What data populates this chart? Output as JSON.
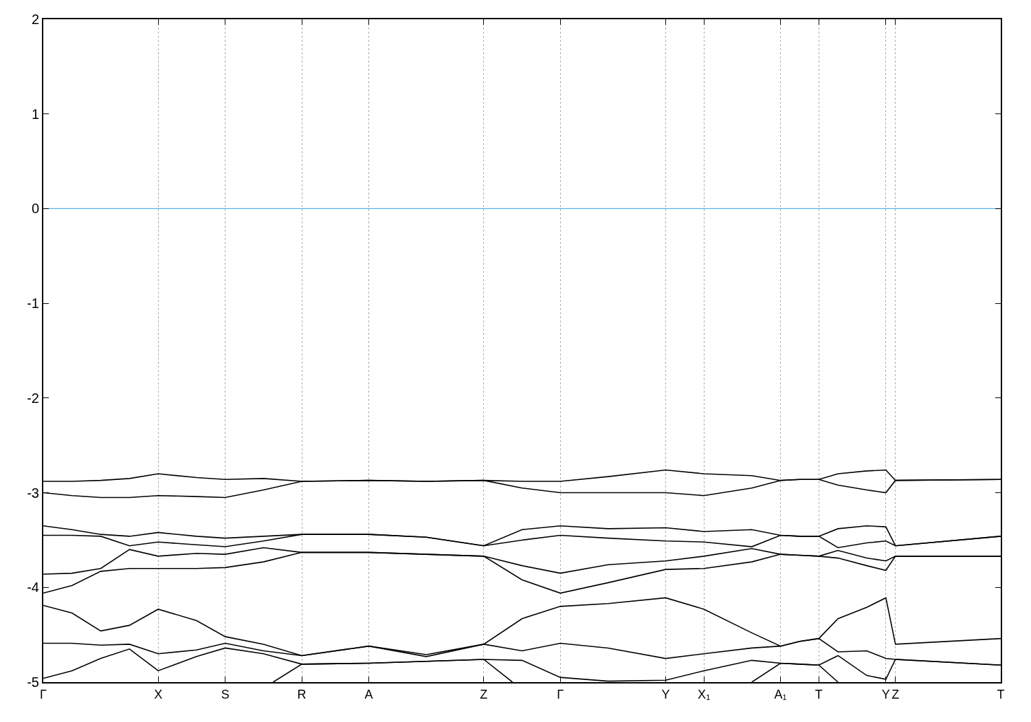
{
  "chart_data": {
    "type": "line",
    "categories": [
      "Γ",
      null,
      null,
      null,
      null,
      null,
      null,
      null,
      null,
      null,
      null,
      null,
      "X",
      null,
      null,
      null,
      null,
      null,
      null,
      "S",
      null,
      null,
      null,
      null,
      null,
      null,
      null,
      "R",
      null,
      null,
      null,
      null,
      null,
      null,
      "A",
      null,
      null,
      null,
      null,
      null,
      null,
      null,
      null,
      null,
      null,
      null,
      "Z",
      null,
      null,
      null,
      null,
      null,
      null,
      null,
      "Γ",
      null,
      null,
      null,
      null,
      null,
      null,
      null,
      null,
      null,
      null,
      "Y",
      null,
      null,
      null,
      "X₁",
      null,
      null,
      null,
      null,
      null,
      null,
      null,
      "A₁",
      null,
      null,
      null,
      "T",
      null,
      null,
      null,
      null,
      null,
      null,
      "Y",
      "Z",
      null,
      null,
      null,
      null,
      null,
      null,
      null,
      null,
      null,
      null,
      "T"
    ],
    "series": [
      {
        "color": "#000000",
        "values": [
          -2.88,
          null,
          null,
          -2.88,
          null,
          null,
          -2.87,
          null,
          null,
          -2.85,
          null,
          null,
          -2.8,
          null,
          null,
          null,
          -2.84,
          null,
          null,
          -2.86,
          null,
          null,
          null,
          -2.85,
          null,
          null,
          null,
          -2.88,
          null,
          null,
          null,
          null,
          null,
          null,
          -2.87,
          null,
          null,
          null,
          null,
          null,
          -2.88,
          null,
          null,
          null,
          null,
          null,
          -2.87,
          null,
          null,
          null,
          -2.88,
          null,
          null,
          null,
          -2.88,
          null,
          null,
          null,
          null,
          -2.83,
          null,
          null,
          null,
          null,
          null,
          -2.76,
          null,
          null,
          null,
          -2.8,
          null,
          null,
          null,
          null,
          -2.82,
          null,
          null,
          -2.87,
          null,
          -2.86,
          null,
          -2.86,
          null,
          -2.8,
          null,
          null,
          -2.77,
          null,
          -2.76,
          -2.87,
          null,
          null,
          null,
          null,
          null,
          null,
          null,
          null,
          null,
          null,
          -2.86
        ]
      },
      {
        "color": "#000000",
        "values": [
          -3.0,
          null,
          null,
          -3.03,
          null,
          null,
          -3.05,
          null,
          null,
          -3.05,
          null,
          null,
          -3.03,
          null,
          null,
          null,
          -3.04,
          null,
          null,
          -3.05,
          null,
          null,
          null,
          -2.97,
          null,
          null,
          null,
          -2.88,
          null,
          null,
          null,
          null,
          null,
          null,
          -2.87,
          null,
          null,
          null,
          null,
          null,
          -2.88,
          null,
          null,
          null,
          null,
          null,
          -2.87,
          null,
          null,
          null,
          -2.95,
          null,
          null,
          null,
          -3.0,
          null,
          null,
          null,
          null,
          -3.0,
          null,
          null,
          null,
          null,
          null,
          -3.0,
          null,
          null,
          null,
          -3.03,
          null,
          null,
          null,
          null,
          -2.95,
          null,
          null,
          -2.87,
          null,
          -2.86,
          null,
          -2.86,
          null,
          -2.92,
          null,
          null,
          -2.97,
          null,
          -3.0,
          -2.87,
          null,
          null,
          null,
          null,
          null,
          null,
          null,
          null,
          null,
          null,
          -2.86
        ]
      },
      {
        "color": "#000000",
        "values": [
          -3.35,
          null,
          null,
          -3.39,
          null,
          null,
          -3.44,
          null,
          null,
          -3.46,
          null,
          null,
          -3.42,
          null,
          null,
          null,
          -3.46,
          null,
          null,
          -3.48,
          null,
          null,
          null,
          -3.46,
          null,
          null,
          null,
          -3.44,
          null,
          null,
          null,
          null,
          null,
          null,
          -3.44,
          null,
          null,
          null,
          null,
          null,
          -3.47,
          null,
          null,
          null,
          null,
          null,
          -3.56,
          null,
          null,
          null,
          -3.39,
          null,
          null,
          null,
          -3.35,
          null,
          null,
          null,
          null,
          -3.38,
          null,
          null,
          null,
          null,
          null,
          -3.37,
          null,
          null,
          null,
          -3.41,
          null,
          null,
          null,
          null,
          -3.39,
          null,
          null,
          -3.45,
          null,
          -3.46,
          null,
          -3.46,
          null,
          -3.38,
          null,
          null,
          -3.35,
          null,
          -3.36,
          -3.56,
          null,
          null,
          null,
          null,
          null,
          null,
          null,
          null,
          null,
          null,
          -3.46
        ]
      },
      {
        "color": "#000000",
        "values": [
          -3.45,
          null,
          null,
          -3.45,
          null,
          null,
          -3.46,
          null,
          null,
          -3.56,
          null,
          null,
          -3.52,
          null,
          null,
          null,
          -3.55,
          null,
          null,
          -3.57,
          null,
          null,
          null,
          -3.51,
          null,
          null,
          null,
          -3.44,
          null,
          null,
          null,
          null,
          null,
          null,
          -3.44,
          null,
          null,
          null,
          null,
          null,
          -3.47,
          null,
          null,
          null,
          null,
          null,
          -3.56,
          null,
          null,
          null,
          -3.5,
          null,
          null,
          null,
          -3.45,
          null,
          null,
          null,
          null,
          -3.48,
          null,
          null,
          null,
          null,
          null,
          -3.51,
          null,
          null,
          null,
          -3.52,
          null,
          null,
          null,
          null,
          -3.57,
          null,
          null,
          -3.45,
          null,
          -3.46,
          null,
          -3.46,
          null,
          -3.58,
          null,
          null,
          -3.53,
          null,
          -3.51,
          -3.56,
          null,
          null,
          null,
          null,
          null,
          null,
          null,
          null,
          null,
          null,
          -3.46
        ]
      },
      {
        "color": "#000000",
        "values": [
          -3.86,
          null,
          null,
          -3.85,
          null,
          null,
          -3.8,
          null,
          null,
          -3.6,
          null,
          null,
          -3.67,
          null,
          null,
          null,
          -3.64,
          null,
          null,
          -3.65,
          null,
          null,
          null,
          -3.58,
          null,
          null,
          null,
          -3.63,
          null,
          null,
          null,
          null,
          null,
          null,
          -3.63,
          null,
          null,
          null,
          null,
          null,
          -3.65,
          null,
          null,
          null,
          null,
          null,
          -3.67,
          null,
          null,
          null,
          -3.77,
          null,
          null,
          null,
          -3.85,
          null,
          null,
          null,
          null,
          -3.76,
          null,
          null,
          null,
          null,
          null,
          -3.72,
          null,
          null,
          null,
          -3.67,
          null,
          null,
          null,
          null,
          -3.59,
          null,
          null,
          -3.65,
          null,
          -3.66,
          null,
          -3.67,
          null,
          -3.61,
          null,
          null,
          -3.69,
          null,
          -3.72,
          -3.67,
          null,
          null,
          null,
          null,
          null,
          null,
          null,
          null,
          null,
          null,
          -3.67
        ]
      },
      {
        "color": "#000000",
        "values": [
          -4.06,
          null,
          null,
          -3.98,
          null,
          null,
          -3.83,
          null,
          null,
          -3.8,
          null,
          null,
          -3.8,
          null,
          null,
          null,
          -3.8,
          null,
          null,
          -3.79,
          null,
          null,
          null,
          -3.73,
          null,
          null,
          null,
          -3.63,
          null,
          null,
          null,
          null,
          null,
          null,
          -3.63,
          null,
          null,
          null,
          null,
          null,
          -3.65,
          null,
          null,
          null,
          null,
          null,
          -3.67,
          null,
          null,
          null,
          -3.92,
          null,
          null,
          null,
          -4.06,
          null,
          null,
          null,
          null,
          -3.95,
          null,
          null,
          null,
          null,
          null,
          -3.81,
          null,
          null,
          null,
          -3.8,
          null,
          null,
          null,
          null,
          -3.73,
          null,
          null,
          -3.65,
          null,
          -3.66,
          null,
          -3.67,
          null,
          -3.69,
          null,
          null,
          -3.77,
          null,
          -3.82,
          -3.67,
          null,
          null,
          null,
          null,
          null,
          null,
          null,
          null,
          null,
          null,
          -3.67
        ]
      },
      {
        "color": "#000000",
        "values": [
          -4.19,
          null,
          null,
          -4.27,
          null,
          null,
          -4.46,
          null,
          null,
          -4.4,
          null,
          null,
          -4.23,
          null,
          null,
          null,
          -4.35,
          null,
          null,
          -4.52,
          null,
          null,
          null,
          -4.6,
          null,
          null,
          null,
          -4.72,
          null,
          null,
          null,
          null,
          null,
          null,
          -4.62,
          null,
          null,
          null,
          null,
          null,
          -4.71,
          null,
          null,
          null,
          null,
          null,
          -4.6,
          null,
          null,
          null,
          -4.33,
          null,
          null,
          null,
          -4.2,
          null,
          null,
          null,
          null,
          -4.17,
          null,
          null,
          null,
          null,
          null,
          -4.11,
          null,
          null,
          null,
          -4.23,
          null,
          null,
          null,
          null,
          -4.48,
          null,
          null,
          -4.62,
          null,
          -4.57,
          null,
          -4.54,
          null,
          -4.33,
          null,
          null,
          -4.21,
          null,
          -4.11,
          -4.6,
          null,
          null,
          null,
          null,
          null,
          null,
          null,
          null,
          null,
          null,
          -4.54
        ]
      },
      {
        "color": "#000000",
        "values": [
          -4.59,
          null,
          null,
          -4.59,
          null,
          null,
          -4.61,
          null,
          null,
          -4.6,
          null,
          null,
          -4.7,
          null,
          null,
          null,
          -4.66,
          null,
          null,
          -4.59,
          null,
          null,
          null,
          -4.67,
          null,
          null,
          null,
          -4.72,
          null,
          null,
          null,
          null,
          null,
          null,
          -4.62,
          null,
          null,
          null,
          null,
          null,
          -4.73,
          null,
          null,
          null,
          null,
          null,
          -4.6,
          null,
          null,
          null,
          -4.67,
          null,
          null,
          null,
          -4.59,
          null,
          null,
          null,
          null,
          -4.64,
          null,
          null,
          null,
          null,
          null,
          -4.75,
          null,
          null,
          null,
          -4.7,
          null,
          null,
          null,
          null,
          -4.64,
          null,
          null,
          -4.62,
          null,
          -4.57,
          null,
          -4.54,
          null,
          -4.68,
          null,
          null,
          -4.67,
          null,
          -4.75,
          -4.76,
          null,
          null,
          null,
          null,
          null,
          null,
          null,
          null,
          null,
          null,
          -4.82
        ]
      },
      {
        "color": "#000000",
        "values": [
          -4.96,
          null,
          null,
          -4.88,
          null,
          null,
          -4.75,
          null,
          null,
          -4.65,
          null,
          null,
          -4.88,
          null,
          null,
          null,
          -4.73,
          null,
          null,
          -4.64,
          null,
          null,
          null,
          -4.7,
          null,
          null,
          null,
          -4.81,
          null,
          null,
          null,
          null,
          null,
          null,
          -4.8,
          null,
          null,
          null,
          null,
          null,
          -4.78,
          null,
          null,
          null,
          null,
          null,
          -4.76,
          null,
          null,
          null,
          -4.77,
          null,
          null,
          null,
          -4.95,
          null,
          null,
          null,
          null,
          -4.99,
          null,
          null,
          null,
          null,
          null,
          -4.98,
          null,
          null,
          null,
          -4.88,
          null,
          null,
          null,
          null,
          -4.77,
          null,
          null,
          -4.8,
          null,
          -4.81,
          null,
          -4.82,
          null,
          -4.72,
          null,
          null,
          -4.93,
          null,
          -4.97,
          -4.76,
          null,
          null,
          null,
          null,
          null,
          null,
          null,
          null,
          null,
          null,
          -4.82
        ]
      },
      {
        "color": "#000000",
        "values": [
          null,
          null,
          null,
          null,
          null,
          null,
          null,
          null,
          null,
          null,
          null,
          null,
          null,
          null,
          null,
          null,
          null,
          null,
          null,
          null,
          null,
          null,
          null,
          null,
          -5.0,
          null,
          null,
          -4.81,
          null,
          null,
          null,
          null,
          null,
          null,
          -4.8,
          null,
          null,
          null,
          null,
          null,
          -4.78,
          null,
          null,
          null,
          null,
          null,
          -4.76,
          null,
          null,
          -5.0,
          null,
          null,
          null,
          null,
          null,
          null,
          null,
          null,
          null,
          null,
          null,
          null,
          null,
          null,
          null,
          null,
          null,
          null,
          null,
          null,
          null,
          null,
          null,
          null,
          null,
          null,
          null,
          null,
          null,
          null,
          null,
          null,
          null,
          null,
          null,
          null,
          null,
          null,
          null,
          null,
          null,
          null,
          null,
          null,
          null,
          null,
          null,
          null,
          null,
          null,
          null
        ]
      },
      {
        "color": "#000000",
        "values": [
          null,
          null,
          null,
          null,
          null,
          null,
          null,
          null,
          null,
          null,
          null,
          null,
          null,
          null,
          null,
          null,
          null,
          null,
          null,
          null,
          null,
          null,
          null,
          null,
          null,
          null,
          null,
          null,
          null,
          null,
          null,
          null,
          null,
          null,
          null,
          null,
          null,
          null,
          null,
          null,
          null,
          null,
          null,
          null,
          null,
          null,
          null,
          null,
          null,
          null,
          null,
          null,
          null,
          null,
          null,
          null,
          null,
          null,
          null,
          null,
          null,
          null,
          null,
          null,
          null,
          null,
          null,
          null,
          null,
          null,
          null,
          null,
          null,
          null,
          -5.0,
          null,
          null,
          -4.8,
          null,
          -4.81,
          null,
          -4.82,
          null,
          -5.0,
          null,
          null,
          null,
          null,
          null,
          null,
          null,
          null,
          null,
          null,
          null,
          null,
          null,
          null,
          null,
          null,
          null
        ]
      }
    ],
    "ylim": [
      -5,
      2
    ],
    "yticks": [
      -5,
      -4,
      -3,
      -2,
      -1,
      0,
      1,
      2
    ],
    "grid": "x",
    "marker": "none",
    "line_style": "solid",
    "ref_lines": [
      {
        "axis": "y",
        "value": 0,
        "color": "#56b4e9"
      }
    ]
  }
}
